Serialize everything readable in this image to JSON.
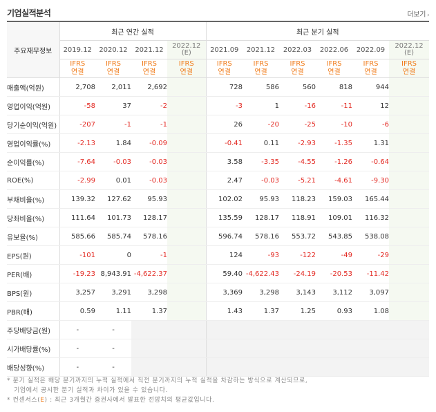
{
  "header": {
    "title": "기업실적분석",
    "more_label": "더보기",
    "more_arrow": "›"
  },
  "table": {
    "row_header": "주요재무정보",
    "annual_group": "최근 연간 실적",
    "quarter_group": "최근 분기 실적",
    "annual_periods": [
      "2019.12",
      "2020.12",
      "2021.12"
    ],
    "annual_est_period": "2022.12",
    "annual_est_mark": "(E)",
    "quarter_periods": [
      "2021.09",
      "2021.12",
      "2022.03",
      "2022.06",
      "2022.09"
    ],
    "quarter_est_period": "2022.12 (E)",
    "ifrs_top": "IFRS",
    "ifrs_bottom": "연결",
    "rows": [
      {
        "label": "매출액(억원)",
        "annual": [
          "2,708",
          "2,011",
          "2,692"
        ],
        "quarter": [
          "728",
          "586",
          "560",
          "818",
          "944"
        ]
      },
      {
        "label": "영업이익(억원)",
        "annual": [
          "-58",
          "37",
          "-2"
        ],
        "quarter": [
          "-3",
          "1",
          "-16",
          "-11",
          "12"
        ]
      },
      {
        "label": "당기순이익(억원)",
        "annual": [
          "-207",
          "-1",
          "-1"
        ],
        "quarter": [
          "26",
          "-20",
          "-25",
          "-10",
          "-6"
        ]
      },
      {
        "label": "영업이익률(%)",
        "annual": [
          "-2.13",
          "1.84",
          "-0.09"
        ],
        "quarter": [
          "-0.41",
          "0.11",
          "-2.93",
          "-1.35",
          "1.31"
        ]
      },
      {
        "label": "순이익률(%)",
        "annual": [
          "-7.64",
          "-0.03",
          "-0.03"
        ],
        "quarter": [
          "3.58",
          "-3.35",
          "-4.55",
          "-1.26",
          "-0.64"
        ]
      },
      {
        "label": "ROE(%)",
        "annual": [
          "-2.99",
          "0.01",
          "-0.03"
        ],
        "quarter": [
          "2.47",
          "-0.03",
          "-5.21",
          "-4.61",
          "-9.30"
        ]
      },
      {
        "label": "부채비율(%)",
        "annual": [
          "139.32",
          "127.62",
          "95.93"
        ],
        "quarter": [
          "102.02",
          "95.93",
          "118.23",
          "159.03",
          "165.44"
        ]
      },
      {
        "label": "당좌비율(%)",
        "annual": [
          "111.64",
          "101.73",
          "128.17"
        ],
        "quarter": [
          "135.59",
          "128.17",
          "118.91",
          "109.01",
          "116.32"
        ]
      },
      {
        "label": "유보율(%)",
        "annual": [
          "585.66",
          "585.74",
          "578.16"
        ],
        "quarter": [
          "596.74",
          "578.16",
          "553.72",
          "543.85",
          "538.08"
        ]
      },
      {
        "label": "EPS(원)",
        "annual": [
          "-101",
          "0",
          "-1"
        ],
        "quarter": [
          "124",
          "-93",
          "-122",
          "-49",
          "-29"
        ]
      },
      {
        "label": "PER(배)",
        "annual": [
          "-19.23",
          "8,943.91",
          "-4,622.37"
        ],
        "quarter": [
          "59.40",
          "-4,622.43",
          "-24.19",
          "-20.53",
          "-11.42"
        ]
      },
      {
        "label": "BPS(원)",
        "annual": [
          "3,257",
          "3,291",
          "3,298"
        ],
        "quarter": [
          "3,369",
          "3,298",
          "3,143",
          "3,112",
          "3,097"
        ]
      },
      {
        "label": "PBR(배)",
        "annual": [
          "0.59",
          "1.11",
          "1.37"
        ],
        "quarter": [
          "1.43",
          "1.37",
          "1.25",
          "0.93",
          "1.08"
        ]
      },
      {
        "label": "주당배당금(원)",
        "annual": [
          "-",
          "-",
          ""
        ],
        "quarter": [
          "",
          "",
          "",
          "",
          ""
        ]
      },
      {
        "label": "시가배당률(%)",
        "annual": [
          "-",
          "-",
          ""
        ],
        "quarter": [
          "",
          "",
          "",
          "",
          ""
        ]
      },
      {
        "label": "배당성향(%)",
        "annual": [
          "-",
          "-",
          ""
        ],
        "quarter": [
          "",
          "",
          "",
          "",
          ""
        ]
      }
    ]
  },
  "notes": {
    "line1": "* 분기 실적은 해당 분기까지의 누적 실적에서 직전 분기까지의 누적 실적을 차감하는 방식으로 계산되므로,",
    "line2": "기업에서 공시한 분기 실적과 차이가 있을 수 있습니다.",
    "line3_a": "* 컨센서스(",
    "line3_e": "E",
    "line3_b": ") : 최근 3개월간 증권사에서 발표한 전망치의 평균값입니다."
  },
  "colors": {
    "negative": "#e32a23",
    "ifrs": "#f07b19",
    "estimate_bg": "#f5f9f1",
    "blank_bg": "#f3f3f3"
  }
}
